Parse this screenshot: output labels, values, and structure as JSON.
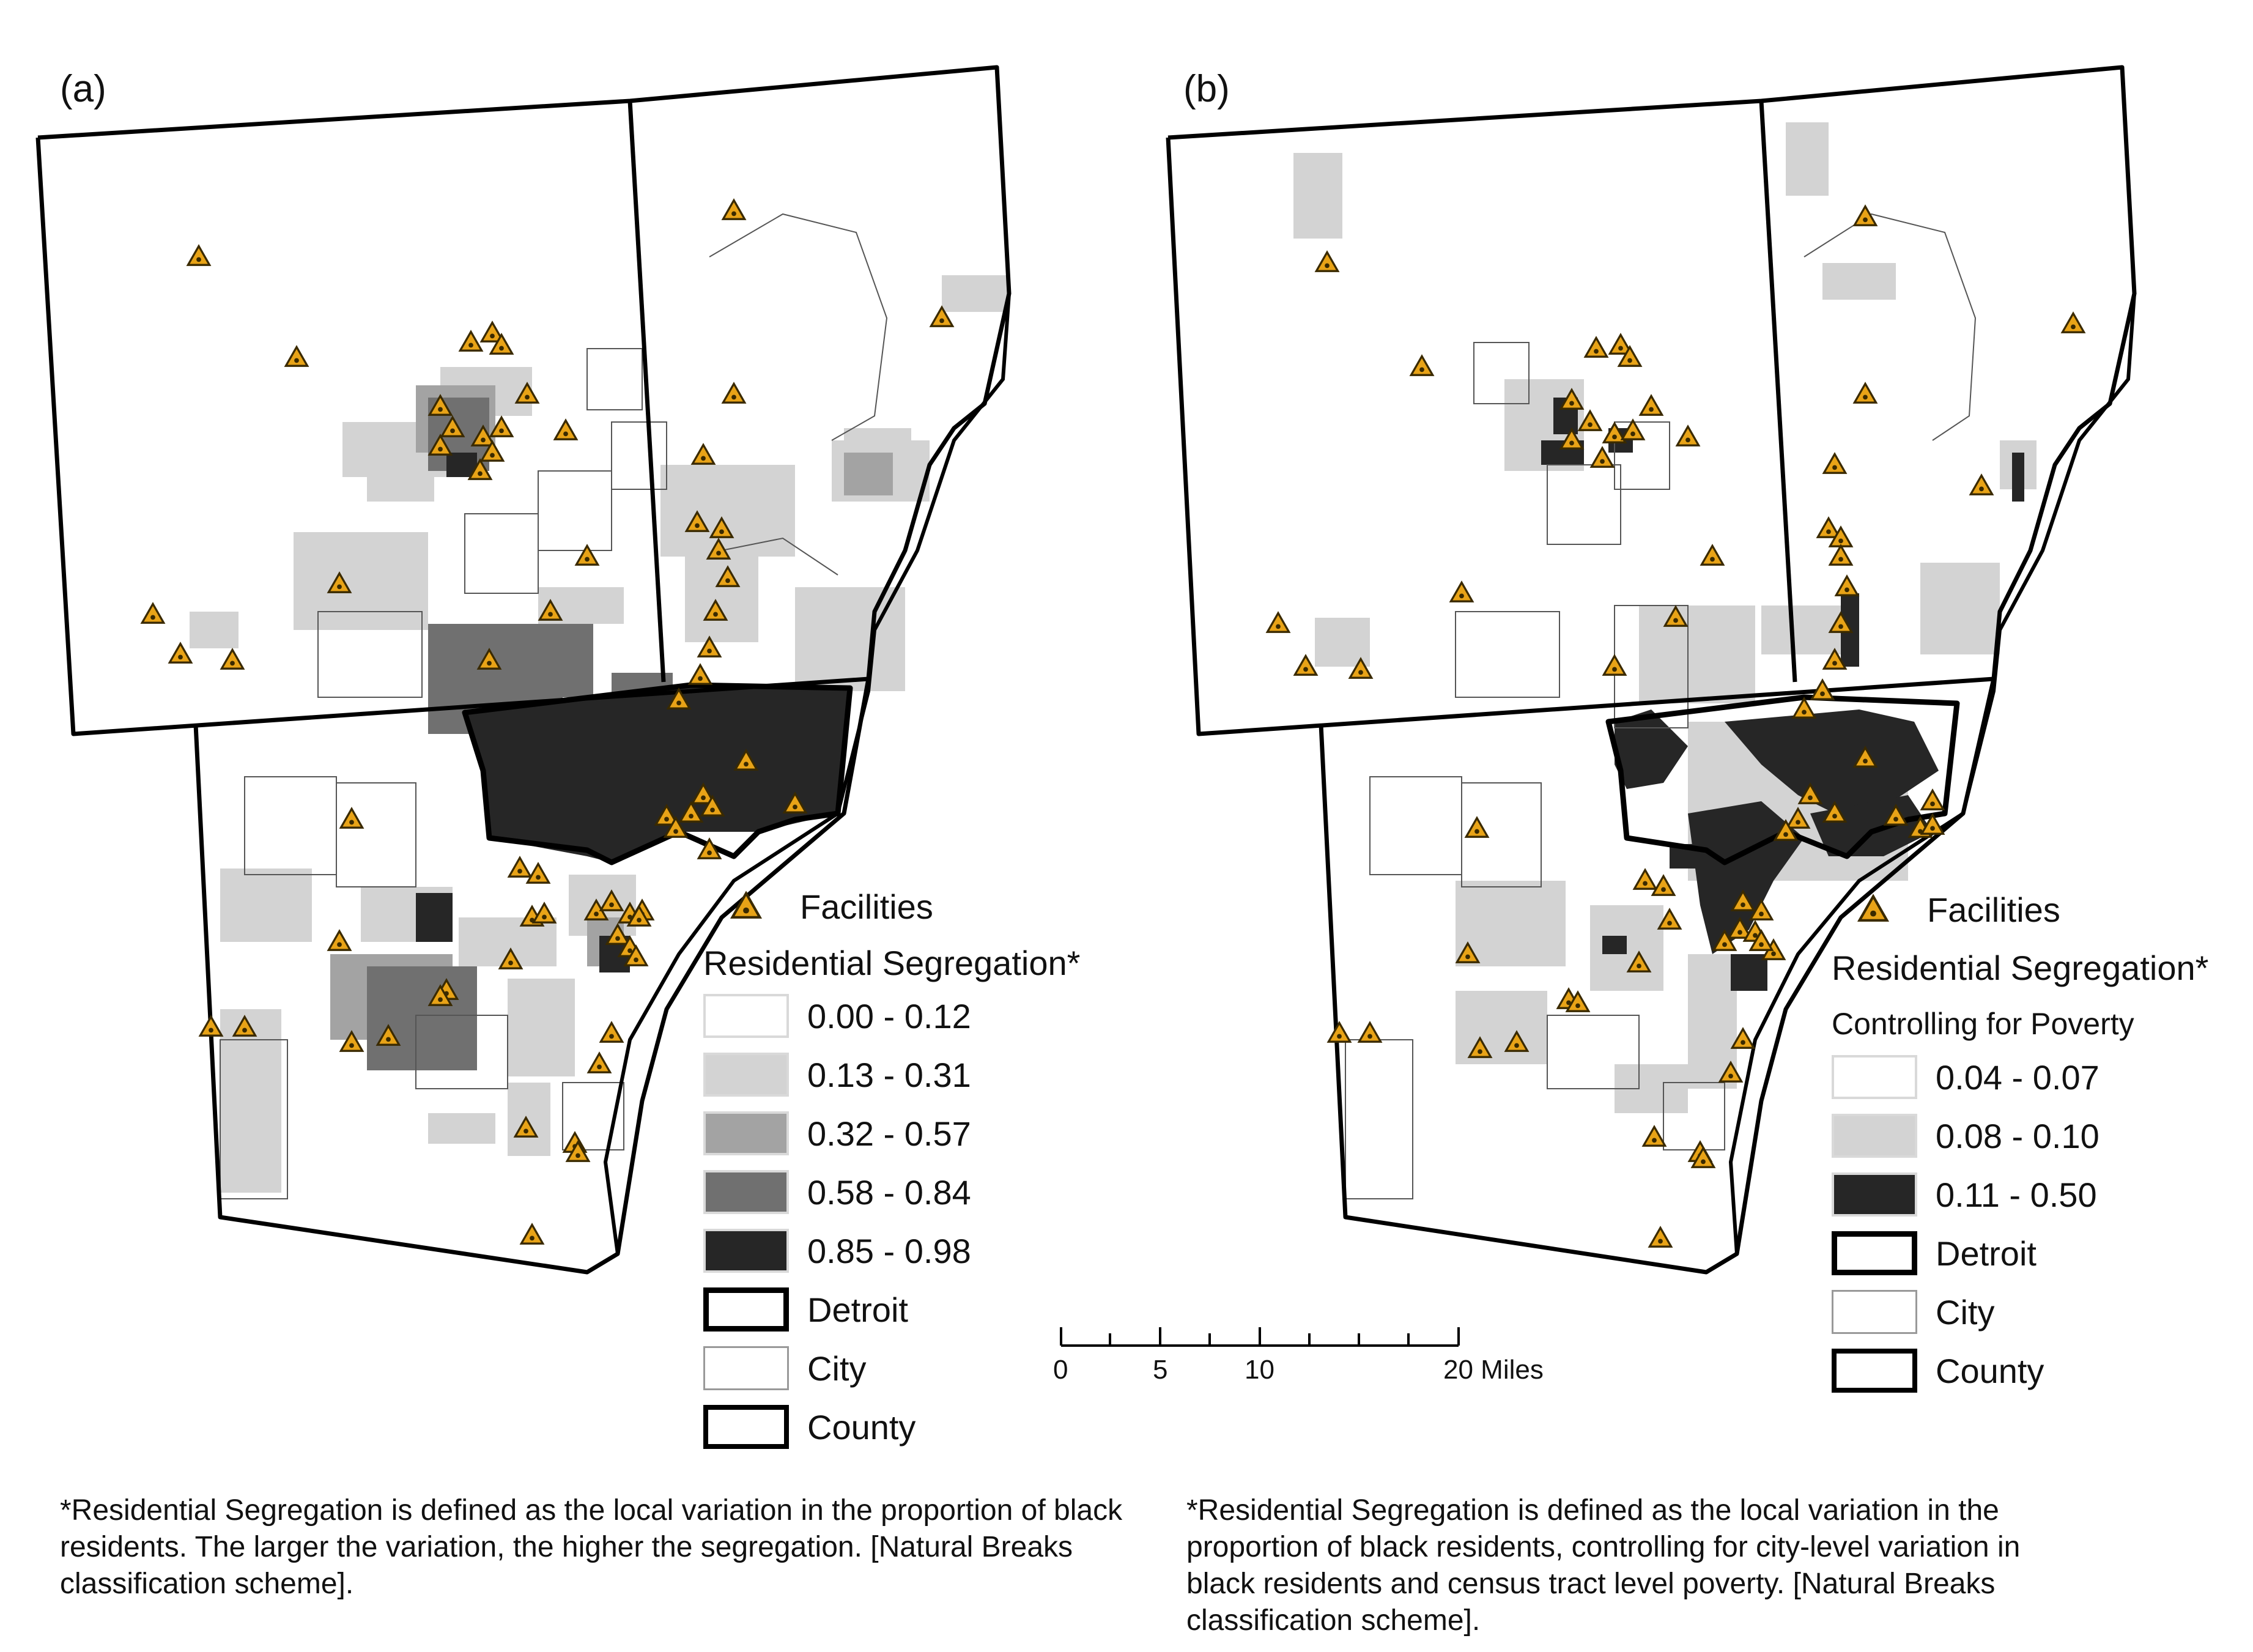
{
  "panel_a": {
    "label": "(a)",
    "legend": {
      "facilities_label": "Facilities",
      "title": "Residential Segregation*",
      "classes": [
        {
          "range": "0.00 - 0.12",
          "color": "#ffffff"
        },
        {
          "range": "0.13 - 0.31",
          "color": "#d3d3d3"
        },
        {
          "range": "0.32 - 0.57",
          "color": "#a3a3a3"
        },
        {
          "range": "0.58 - 0.84",
          "color": "#707070"
        },
        {
          "range": "0.85 - 0.98",
          "color": "#262626"
        }
      ],
      "detroit_label": "Detroit",
      "city_label": "City",
      "county_label": "County"
    },
    "footnote": "*Residential Segregation is defined as the local variation in the proportion of black residents. The larger the variation, the higher the segregation. [Natural Breaks classification scheme]."
  },
  "panel_b": {
    "label": "(b)",
    "legend": {
      "facilities_label": "Facilities",
      "title": "Residential Segregation*",
      "subtitle": "Controlling for Poverty",
      "classes": [
        {
          "range": "0.04 - 0.07",
          "color": "#ffffff"
        },
        {
          "range": "0.08 - 0.10",
          "color": "#d3d3d3"
        },
        {
          "range": "0.11 - 0.50",
          "color": "#262626"
        }
      ],
      "detroit_label": "Detroit",
      "city_label": "City",
      "county_label": "County"
    },
    "footnote": "*Residential Segregation is defined as the local variation in the proportion of black residents, controlling for city-level variation in black residents and census tract level poverty. [Natural Breaks classification scheme]."
  },
  "scale_bar": {
    "ticks": [
      "0",
      "5",
      "10",
      "20 Miles"
    ]
  },
  "colors": {
    "facility_fill": "#e8a317",
    "facility_stroke": "#3a2a00"
  }
}
